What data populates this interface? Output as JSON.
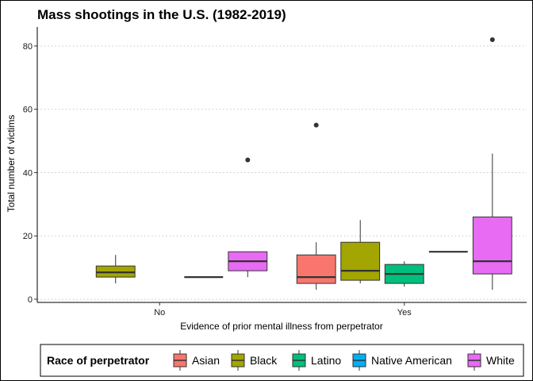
{
  "chart_data": {
    "type": "box",
    "title": "Mass shootings in the U.S. (1982-2019)",
    "xlabel": "Evidence of prior mental illness from perpetrator",
    "ylabel": "Total number of victims",
    "ylim": [
      -1,
      86
    ],
    "yticks": [
      0,
      20,
      40,
      60,
      80
    ],
    "grid": "horizontal-dotted",
    "categories": [
      "No",
      "Yes"
    ],
    "legend": {
      "title": "Race of perpetrator",
      "position": "bottom",
      "entries": [
        "Asian",
        "Black",
        "Latino",
        "Native American",
        "White"
      ]
    },
    "series": [
      {
        "name": "Asian",
        "color": "#F8766D",
        "boxes": [
          {
            "category": "No",
            "present": false
          },
          {
            "category": "Yes",
            "present": true,
            "min": 3,
            "q1": 5,
            "median": 7,
            "q3": 14,
            "max": 18,
            "outliers": [
              55
            ]
          }
        ]
      },
      {
        "name": "Black",
        "color": "#A3A500",
        "boxes": [
          {
            "category": "No",
            "present": true,
            "min": 5,
            "q1": 7,
            "median": 8.5,
            "q3": 10.5,
            "max": 14,
            "outliers": []
          },
          {
            "category": "Yes",
            "present": true,
            "min": 5,
            "q1": 6,
            "median": 9,
            "q3": 18,
            "max": 25,
            "outliers": []
          }
        ]
      },
      {
        "name": "Latino",
        "color": "#00BF7D",
        "boxes": [
          {
            "category": "No",
            "present": false
          },
          {
            "category": "Yes",
            "present": true,
            "min": 4,
            "q1": 5,
            "median": 8,
            "q3": 11,
            "max": 12,
            "outliers": []
          }
        ]
      },
      {
        "name": "Native American",
        "color": "#00B0F6",
        "boxes": [
          {
            "category": "No",
            "present": true,
            "min": 7,
            "q1": 7,
            "median": 7,
            "q3": 7,
            "max": 7,
            "outliers": []
          },
          {
            "category": "Yes",
            "present": true,
            "min": 15,
            "q1": 15,
            "median": 15,
            "q3": 15,
            "max": 15,
            "outliers": []
          }
        ]
      },
      {
        "name": "White",
        "color": "#E76BF3",
        "boxes": [
          {
            "category": "No",
            "present": true,
            "min": 7,
            "q1": 9,
            "median": 12,
            "q3": 15,
            "max": 15,
            "outliers": [
              44
            ]
          },
          {
            "category": "Yes",
            "present": true,
            "min": 3,
            "q1": 8,
            "median": 12,
            "q3": 26,
            "max": 46,
            "outliers": [
              82
            ]
          }
        ]
      }
    ]
  }
}
